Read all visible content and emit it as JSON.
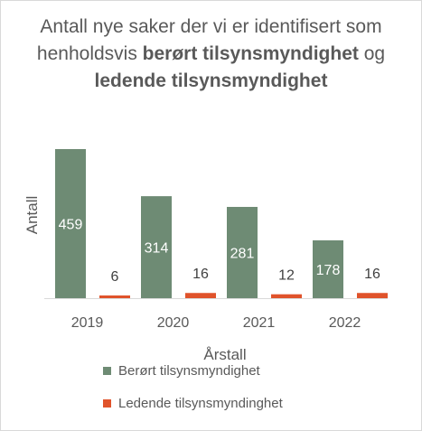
{
  "chart_data": {
    "type": "bar",
    "title": {
      "parts": [
        {
          "text": "Antall nye saker der vi er identifisert som henholdsvis ",
          "bold": false
        },
        {
          "text": "berørt tilsynsmyndighet",
          "bold": true
        },
        {
          "text": " og ",
          "bold": false
        },
        {
          "text": "ledende tilsynsmyndighet",
          "bold": true
        }
      ]
    },
    "xlabel": "Årstall",
    "ylabel": "Antall",
    "categories": [
      "2019",
      "2020",
      "2021",
      "2022"
    ],
    "series": [
      {
        "name": "Berørt tilsynsmyndighet",
        "values": [
          459,
          314,
          281,
          178
        ],
        "color": "#6e8b74",
        "label_color": "#ffffff"
      },
      {
        "name": "Ledende tilsynsmyndinghet",
        "values": [
          6,
          16,
          12,
          16
        ],
        "color": "#e0532b",
        "label_color": "#404040"
      }
    ],
    "ylim": [
      0,
      470
    ],
    "grid": false,
    "legend_position": "bottom"
  }
}
